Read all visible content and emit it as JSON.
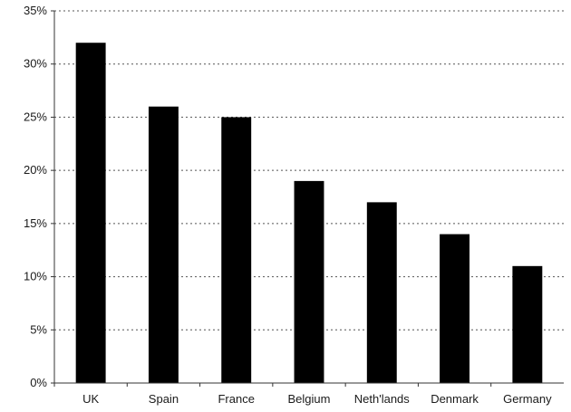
{
  "chart_data": {
    "type": "bar",
    "title": "",
    "xlabel": "",
    "ylabel": "",
    "categories": [
      "UK",
      "Spain",
      "France",
      "Belgium",
      "Neth'lands",
      "Denmark",
      "Germany"
    ],
    "values": [
      32,
      26,
      25,
      19,
      17,
      14,
      11
    ],
    "unit": "%",
    "ylim": [
      0,
      35
    ],
    "yticks": [
      0,
      5,
      10,
      15,
      20,
      25,
      30,
      35
    ],
    "ytick_labels": [
      "0%",
      "5%",
      "10%",
      "15%",
      "20%",
      "25%",
      "30%",
      "35%"
    ],
    "grid": true,
    "grid_style": "dotted",
    "legend": "none",
    "bar_color": "#000000"
  }
}
